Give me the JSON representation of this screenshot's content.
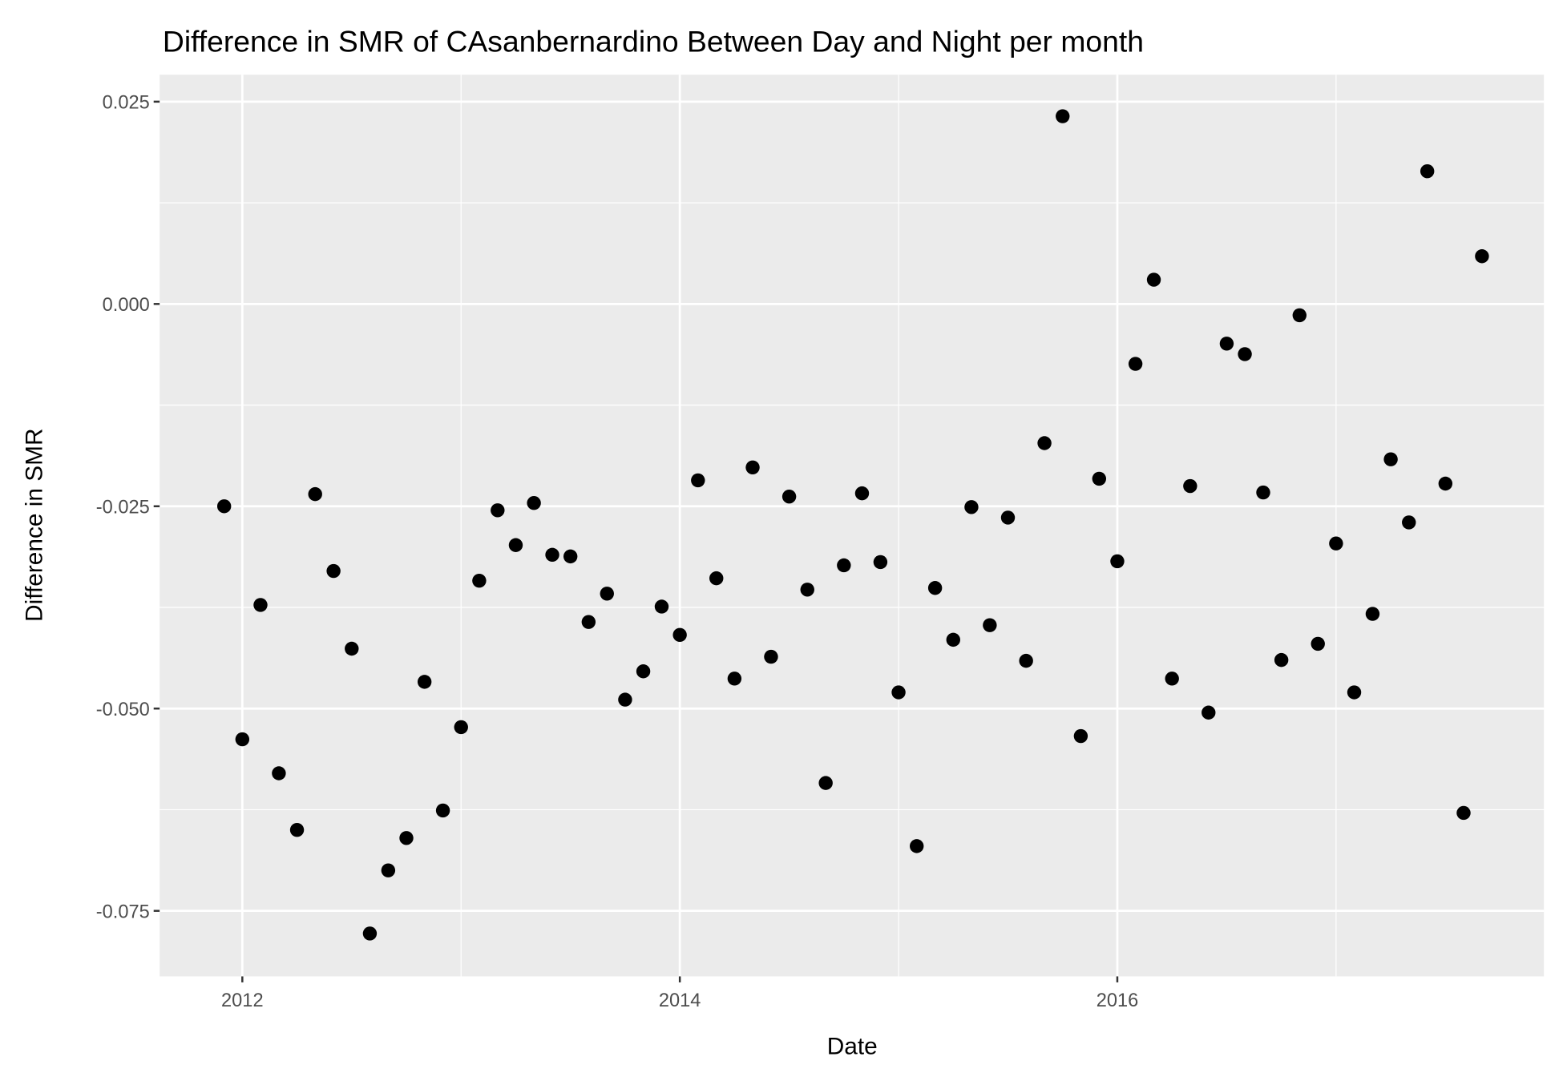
{
  "chart_data": {
    "type": "scatter",
    "title": "Difference in SMR of CAsanbernardino Between Day and Night per month",
    "x_label": "Date",
    "y_label": "Difference in SMR",
    "color": "#000000",
    "grid": true,
    "xlim": [
      2011.622,
      2017.95
    ],
    "ylim": [
      -0.0831,
      0.02833
    ],
    "xticks": [
      2012,
      2014,
      2016
    ],
    "yticks": [
      0.025,
      {
        "value": 0,
        "label": "0.000"
      },
      -0.025,
      {
        "value": -0.05,
        "label": "-0.050"
      },
      -0.075
    ],
    "x": [
      2011.917,
      2012.0,
      2012.083,
      2012.167,
      2012.25,
      2012.333,
      2012.417,
      2012.5,
      2012.583,
      2012.667,
      2012.75,
      2012.833,
      2012.917,
      2013.0,
      2013.083,
      2013.167,
      2013.25,
      2013.333,
      2013.417,
      2013.5,
      2013.583,
      2013.667,
      2013.75,
      2013.833,
      2013.917,
      2014.0,
      2014.083,
      2014.167,
      2014.25,
      2014.333,
      2014.417,
      2014.5,
      2014.583,
      2014.667,
      2014.75,
      2014.833,
      2014.917,
      2015.0,
      2015.083,
      2015.167,
      2015.25,
      2015.333,
      2015.417,
      2015.5,
      2015.583,
      2015.667,
      2015.75,
      2015.833,
      2015.917,
      2016.0,
      2016.083,
      2016.167,
      2016.25,
      2016.333,
      2016.417,
      2016.5,
      2016.583,
      2016.667,
      2016.75,
      2016.833,
      2016.917,
      2017.0,
      2017.083,
      2017.167,
      2017.25,
      2017.333,
      2017.417,
      2017.5,
      2017.583,
      2017.667
    ],
    "values": [
      -0.025,
      -0.0538,
      -0.0372,
      -0.058,
      -0.065,
      -0.0235,
      -0.033,
      -0.0426,
      -0.0778,
      -0.07,
      -0.066,
      -0.0467,
      -0.0626,
      -0.0523,
      -0.0342,
      -0.0255,
      -0.0298,
      -0.0246,
      -0.031,
      -0.0312,
      -0.0393,
      -0.0358,
      -0.0489,
      -0.0454,
      -0.0374,
      -0.0409,
      -0.0218,
      -0.0339,
      -0.0463,
      -0.0202,
      -0.0436,
      -0.0238,
      -0.0353,
      -0.0592,
      -0.0323,
      -0.0234,
      -0.0319,
      -0.048,
      -0.067,
      -0.0351,
      -0.0415,
      -0.0251,
      -0.0397,
      -0.0264,
      -0.0441,
      -0.0172,
      0.0232,
      -0.0534,
      -0.0216,
      -0.0318,
      -0.0074,
      0.003,
      -0.0463,
      -0.0225,
      -0.0505,
      -0.0049,
      -0.0062,
      -0.0233,
      -0.044,
      -0.0014,
      -0.042,
      -0.0296,
      -0.048,
      -0.0383,
      -0.0192,
      -0.027,
      0.0164,
      -0.0222,
      -0.0629,
      0.0059
    ]
  }
}
